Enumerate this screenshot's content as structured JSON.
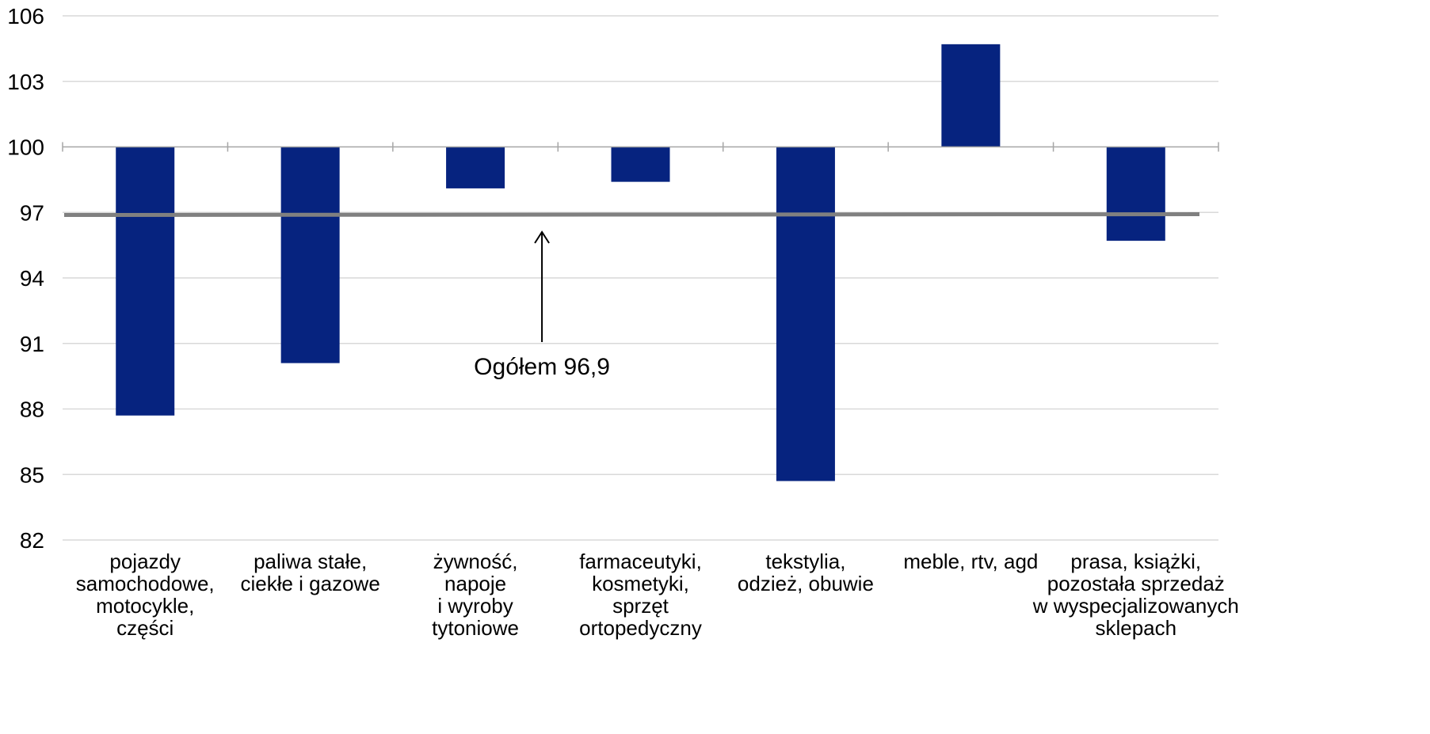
{
  "chart_data": {
    "type": "bar",
    "title": "",
    "xlabel": "",
    "ylabel": "",
    "baseline": 100,
    "ylim": [
      82,
      106
    ],
    "yticks": [
      82,
      85,
      88,
      91,
      94,
      97,
      100,
      103,
      106
    ],
    "grid": true,
    "categories": [
      [
        "pojazdy",
        "samochodowe,",
        "motocykle,",
        "części"
      ],
      [
        "paliwa stałe,",
        "ciekłe i gazowe"
      ],
      [
        "żywność,",
        "napoje",
        "i wyroby",
        "tytoniowe"
      ],
      [
        "farmaceutyki,",
        "kosmetyki,",
        "sprzęt",
        "ortopedyczny"
      ],
      [
        "tekstylia,",
        "odzież, obuwie"
      ],
      [
        "meble, rtv, agd"
      ],
      [
        "prasa, książki,",
        "pozostała sprzedaż",
        "w wyspecjalizowanych",
        "sklepach"
      ]
    ],
    "values": [
      87.7,
      90.1,
      98.1,
      98.4,
      84.7,
      104.7,
      95.7
    ],
    "reference_line": {
      "value": 96.9,
      "label": "Ogółem 96,9"
    },
    "colors": {
      "bar": "#06237F",
      "reference": "#808080",
      "grid": "#d9d9d9",
      "axis": "#a6a6a6"
    }
  }
}
